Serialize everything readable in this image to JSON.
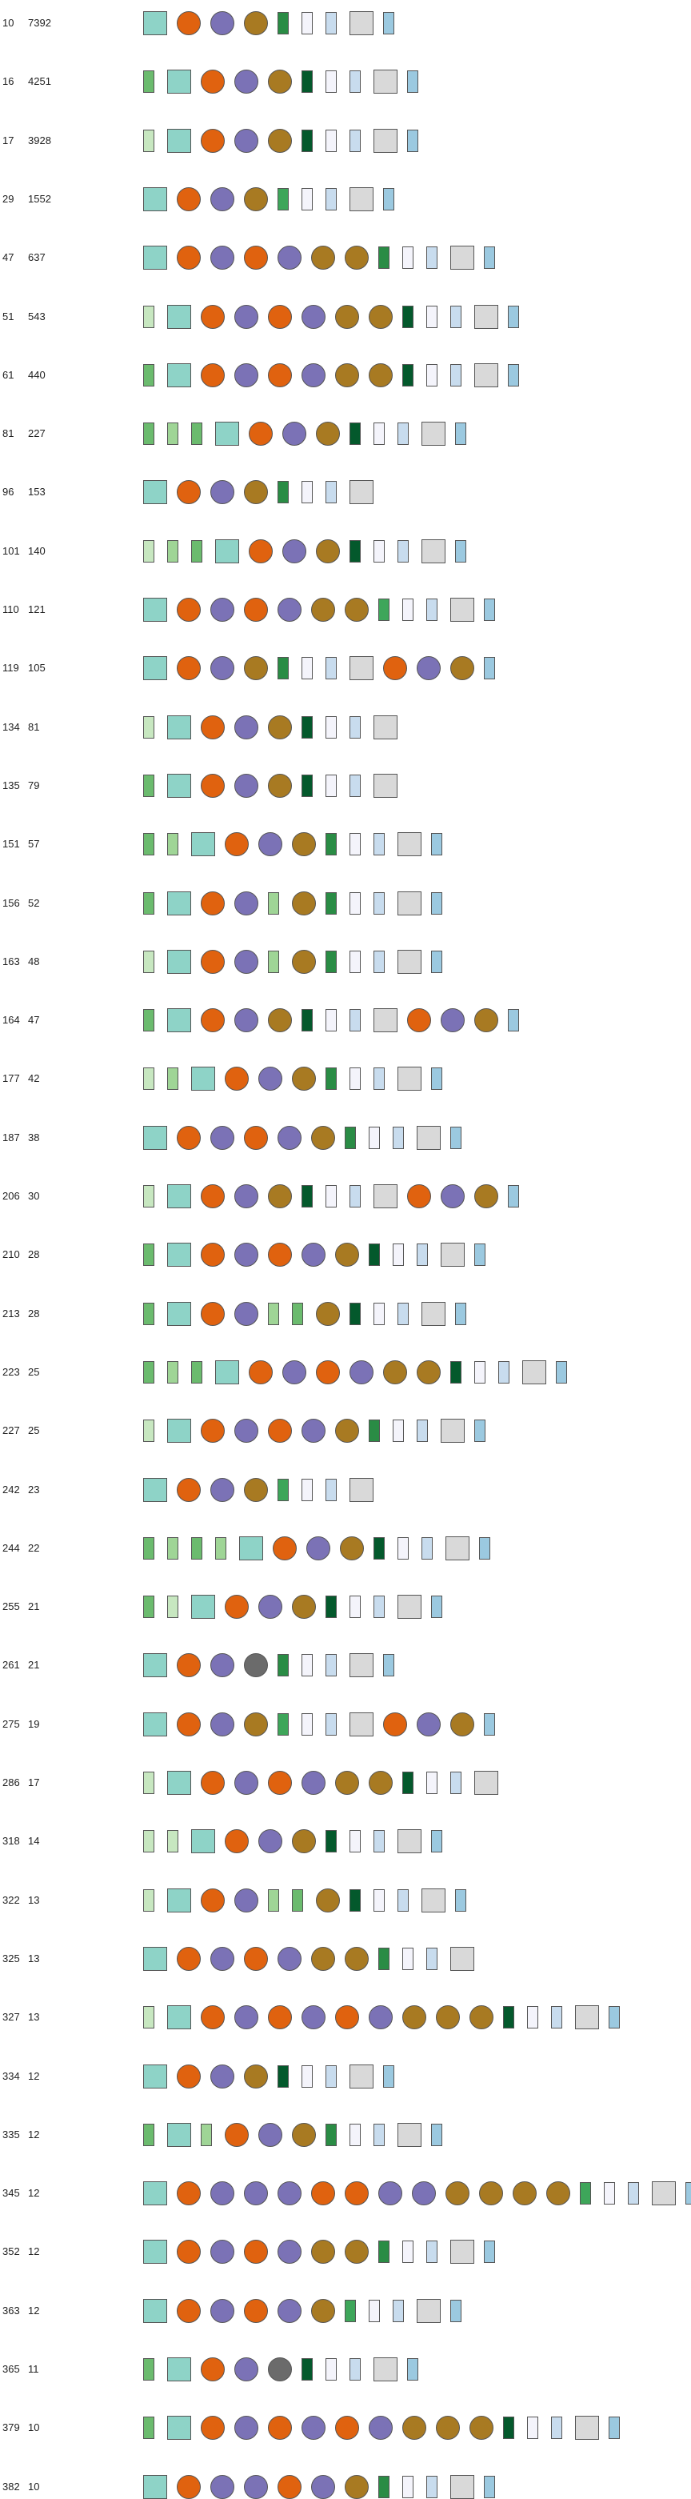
{
  "legend_palette": {
    "sq-teal": "#8ed3c7",
    "sq-grey": "#d9d9d9",
    "ci-orange": "#e0620f",
    "ci-purple": "#7b72b6",
    "ci-gold": "#a87a22",
    "ci-grey": "#6b6b6b",
    "ba-pale": "#c7e7c0",
    "ba-light": "#9fd596",
    "ba-mid": "#6bbb6e",
    "ba-green": "#3ea65a",
    "ba-dark": "#2a8c45",
    "ba-deep": "#04592c",
    "ba-white": "#f4f4fb",
    "ba-ice": "#c8dcee",
    "ba-blue": "#9bc9e0"
  },
  "rows": [
    {
      "id": "10",
      "count": "7392",
      "symbols": [
        "sq-teal",
        "ci-orange",
        "ci-purple",
        "ci-gold",
        "ba-dark",
        "ba-white",
        "ba-ice",
        "sq-grey",
        "ba-blue"
      ]
    },
    {
      "id": "16",
      "count": "4251",
      "symbols": [
        "ba-mid",
        "sq-teal",
        "ci-orange",
        "ci-purple",
        "ci-gold",
        "ba-deep",
        "ba-white",
        "ba-ice",
        "sq-grey",
        "ba-blue"
      ]
    },
    {
      "id": "17",
      "count": "3928",
      "symbols": [
        "ba-pale",
        "sq-teal",
        "ci-orange",
        "ci-purple",
        "ci-gold",
        "ba-deep",
        "ba-white",
        "ba-ice",
        "sq-grey",
        "ba-blue"
      ]
    },
    {
      "id": "29",
      "count": "1552",
      "symbols": [
        "sq-teal",
        "ci-orange",
        "ci-purple",
        "ci-gold",
        "ba-green",
        "ba-white",
        "ba-ice",
        "sq-grey",
        "ba-blue"
      ]
    },
    {
      "id": "47",
      "count": "637",
      "symbols": [
        "sq-teal",
        "ci-orange",
        "ci-purple",
        "ci-orange",
        "ci-purple",
        "ci-gold",
        "ci-gold",
        "ba-dark",
        "ba-white",
        "ba-ice",
        "sq-grey",
        "ba-blue"
      ]
    },
    {
      "id": "51",
      "count": "543",
      "symbols": [
        "ba-pale",
        "sq-teal",
        "ci-orange",
        "ci-purple",
        "ci-orange",
        "ci-purple",
        "ci-gold",
        "ci-gold",
        "ba-deep",
        "ba-white",
        "ba-ice",
        "sq-grey",
        "ba-blue"
      ]
    },
    {
      "id": "61",
      "count": "440",
      "symbols": [
        "ba-mid",
        "sq-teal",
        "ci-orange",
        "ci-purple",
        "ci-orange",
        "ci-purple",
        "ci-gold",
        "ci-gold",
        "ba-deep",
        "ba-white",
        "ba-ice",
        "sq-grey",
        "ba-blue"
      ]
    },
    {
      "id": "81",
      "count": "227",
      "symbols": [
        "ba-mid",
        "ba-light",
        "ba-mid",
        "sq-teal",
        "ci-orange",
        "ci-purple",
        "ci-gold",
        "ba-deep",
        "ba-white",
        "ba-ice",
        "sq-grey",
        "ba-blue"
      ]
    },
    {
      "id": "96",
      "count": "153",
      "symbols": [
        "sq-teal",
        "ci-orange",
        "ci-purple",
        "ci-gold",
        "ba-dark",
        "ba-white",
        "ba-ice",
        "sq-grey"
      ]
    },
    {
      "id": "101",
      "count": "140",
      "symbols": [
        "ba-pale",
        "ba-light",
        "ba-mid",
        "sq-teal",
        "ci-orange",
        "ci-purple",
        "ci-gold",
        "ba-deep",
        "ba-white",
        "ba-ice",
        "sq-grey",
        "ba-blue"
      ]
    },
    {
      "id": "110",
      "count": "121",
      "symbols": [
        "sq-teal",
        "ci-orange",
        "ci-purple",
        "ci-orange",
        "ci-purple",
        "ci-gold",
        "ci-gold",
        "ba-green",
        "ba-white",
        "ba-ice",
        "sq-grey",
        "ba-blue"
      ]
    },
    {
      "id": "119",
      "count": "105",
      "symbols": [
        "sq-teal",
        "ci-orange",
        "ci-purple",
        "ci-gold",
        "ba-dark",
        "ba-white",
        "ba-ice",
        "sq-grey",
        "ci-orange",
        "ci-purple",
        "ci-gold",
        "ba-blue"
      ]
    },
    {
      "id": "134",
      "count": "81",
      "symbols": [
        "ba-pale",
        "sq-teal",
        "ci-orange",
        "ci-purple",
        "ci-gold",
        "ba-deep",
        "ba-white",
        "ba-ice",
        "sq-grey"
      ]
    },
    {
      "id": "135",
      "count": "79",
      "symbols": [
        "ba-mid",
        "sq-teal",
        "ci-orange",
        "ci-purple",
        "ci-gold",
        "ba-deep",
        "ba-white",
        "ba-ice",
        "sq-grey"
      ]
    },
    {
      "id": "151",
      "count": "57",
      "symbols": [
        "ba-mid",
        "ba-light",
        "sq-teal",
        "ci-orange",
        "ci-purple",
        "ci-gold",
        "ba-dark",
        "ba-white",
        "ba-ice",
        "sq-grey",
        "ba-blue"
      ]
    },
    {
      "id": "156",
      "count": "52",
      "symbols": [
        "ba-mid",
        "sq-teal",
        "ci-orange",
        "ci-purple",
        "ba-light",
        "ci-gold",
        "ba-dark",
        "ba-white",
        "ba-ice",
        "sq-grey",
        "ba-blue"
      ]
    },
    {
      "id": "163",
      "count": "48",
      "symbols": [
        "ba-pale",
        "sq-teal",
        "ci-orange",
        "ci-purple",
        "ba-light",
        "ci-gold",
        "ba-dark",
        "ba-white",
        "ba-ice",
        "sq-grey",
        "ba-blue"
      ]
    },
    {
      "id": "164",
      "count": "47",
      "symbols": [
        "ba-mid",
        "sq-teal",
        "ci-orange",
        "ci-purple",
        "ci-gold",
        "ba-deep",
        "ba-white",
        "ba-ice",
        "sq-grey",
        "ci-orange",
        "ci-purple",
        "ci-gold",
        "ba-blue"
      ]
    },
    {
      "id": "177",
      "count": "42",
      "symbols": [
        "ba-pale",
        "ba-light",
        "sq-teal",
        "ci-orange",
        "ci-purple",
        "ci-gold",
        "ba-dark",
        "ba-white",
        "ba-ice",
        "sq-grey",
        "ba-blue"
      ]
    },
    {
      "id": "187",
      "count": "38",
      "symbols": [
        "sq-teal",
        "ci-orange",
        "ci-purple",
        "ci-orange",
        "ci-purple",
        "ci-gold",
        "ba-dark",
        "ba-white",
        "ba-ice",
        "sq-grey",
        "ba-blue"
      ]
    },
    {
      "id": "206",
      "count": "30",
      "symbols": [
        "ba-pale",
        "sq-teal",
        "ci-orange",
        "ci-purple",
        "ci-gold",
        "ba-deep",
        "ba-white",
        "ba-ice",
        "sq-grey",
        "ci-orange",
        "ci-purple",
        "ci-gold",
        "ba-blue"
      ]
    },
    {
      "id": "210",
      "count": "28",
      "symbols": [
        "ba-mid",
        "sq-teal",
        "ci-orange",
        "ci-purple",
        "ci-orange",
        "ci-purple",
        "ci-gold",
        "ba-deep",
        "ba-white",
        "ba-ice",
        "sq-grey",
        "ba-blue"
      ]
    },
    {
      "id": "213",
      "count": "28",
      "symbols": [
        "ba-mid",
        "sq-teal",
        "ci-orange",
        "ci-purple",
        "ba-light",
        "ba-mid",
        "ci-gold",
        "ba-deep",
        "ba-white",
        "ba-ice",
        "sq-grey",
        "ba-blue"
      ]
    },
    {
      "id": "223",
      "count": "25",
      "symbols": [
        "ba-mid",
        "ba-light",
        "ba-mid",
        "sq-teal",
        "ci-orange",
        "ci-purple",
        "ci-orange",
        "ci-purple",
        "ci-gold",
        "ci-gold",
        "ba-deep",
        "ba-white",
        "ba-ice",
        "sq-grey",
        "ba-blue"
      ]
    },
    {
      "id": "227",
      "count": "25",
      "symbols": [
        "ba-pale",
        "sq-teal",
        "ci-orange",
        "ci-purple",
        "ci-orange",
        "ci-purple",
        "ci-gold",
        "ba-dark",
        "ba-white",
        "ba-ice",
        "sq-grey",
        "ba-blue"
      ]
    },
    {
      "id": "242",
      "count": "23",
      "symbols": [
        "sq-teal",
        "ci-orange",
        "ci-purple",
        "ci-gold",
        "ba-green",
        "ba-white",
        "ba-ice",
        "sq-grey"
      ]
    },
    {
      "id": "244",
      "count": "22",
      "symbols": [
        "ba-mid",
        "ba-light",
        "ba-mid",
        "ba-light",
        "sq-teal",
        "ci-orange",
        "ci-purple",
        "ci-gold",
        "ba-deep",
        "ba-white",
        "ba-ice",
        "sq-grey",
        "ba-blue"
      ]
    },
    {
      "id": "255",
      "count": "21",
      "symbols": [
        "ba-mid",
        "ba-pale",
        "sq-teal",
        "ci-orange",
        "ci-purple",
        "ci-gold",
        "ba-deep",
        "ba-white",
        "ba-ice",
        "sq-grey",
        "ba-blue"
      ]
    },
    {
      "id": "261",
      "count": "21",
      "symbols": [
        "sq-teal",
        "ci-orange",
        "ci-purple",
        "ci-grey",
        "ba-dark",
        "ba-white",
        "ba-ice",
        "sq-grey",
        "ba-blue"
      ]
    },
    {
      "id": "275",
      "count": "19",
      "symbols": [
        "sq-teal",
        "ci-orange",
        "ci-purple",
        "ci-gold",
        "ba-green",
        "ba-white",
        "ba-ice",
        "sq-grey",
        "ci-orange",
        "ci-purple",
        "ci-gold",
        "ba-blue"
      ]
    },
    {
      "id": "286",
      "count": "17",
      "symbols": [
        "ba-pale",
        "sq-teal",
        "ci-orange",
        "ci-purple",
        "ci-orange",
        "ci-purple",
        "ci-gold",
        "ci-gold",
        "ba-deep",
        "ba-white",
        "ba-ice",
        "sq-grey"
      ]
    },
    {
      "id": "318",
      "count": "14",
      "symbols": [
        "ba-pale",
        "ba-pale",
        "sq-teal",
        "ci-orange",
        "ci-purple",
        "ci-gold",
        "ba-deep",
        "ba-white",
        "ba-ice",
        "sq-grey",
        "ba-blue"
      ]
    },
    {
      "id": "322",
      "count": "13",
      "symbols": [
        "ba-pale",
        "sq-teal",
        "ci-orange",
        "ci-purple",
        "ba-light",
        "ba-mid",
        "ci-gold",
        "ba-deep",
        "ba-white",
        "ba-ice",
        "sq-grey",
        "ba-blue"
      ]
    },
    {
      "id": "325",
      "count": "13",
      "symbols": [
        "sq-teal",
        "ci-orange",
        "ci-purple",
        "ci-orange",
        "ci-purple",
        "ci-gold",
        "ci-gold",
        "ba-dark",
        "ba-white",
        "ba-ice",
        "sq-grey"
      ]
    },
    {
      "id": "327",
      "count": "13",
      "symbols": [
        "ba-pale",
        "sq-teal",
        "ci-orange",
        "ci-purple",
        "ci-orange",
        "ci-purple",
        "ci-orange",
        "ci-purple",
        "ci-gold",
        "ci-gold",
        "ci-gold",
        "ba-deep",
        "ba-white",
        "ba-ice",
        "sq-grey",
        "ba-blue"
      ]
    },
    {
      "id": "334",
      "count": "12",
      "symbols": [
        "sq-teal",
        "ci-orange",
        "ci-purple",
        "ci-gold",
        "ba-deep",
        "ba-white",
        "ba-ice",
        "sq-grey",
        "ba-blue"
      ]
    },
    {
      "id": "335",
      "count": "12",
      "symbols": [
        "ba-mid",
        "sq-teal",
        "ba-light",
        "ci-orange",
        "ci-purple",
        "ci-gold",
        "ba-dark",
        "ba-white",
        "ba-ice",
        "sq-grey",
        "ba-blue"
      ]
    },
    {
      "id": "345",
      "count": "12",
      "symbols": [
        "sq-teal",
        "ci-orange",
        "ci-purple",
        "ci-purple",
        "ci-purple",
        "ci-orange",
        "ci-orange",
        "ci-purple",
        "ci-purple",
        "ci-gold",
        "ci-gold",
        "ci-gold",
        "ci-gold",
        "ba-green",
        "ba-white",
        "ba-ice",
        "sq-grey",
        "ba-blue"
      ]
    },
    {
      "id": "352",
      "count": "12",
      "symbols": [
        "sq-teal",
        "ci-orange",
        "ci-purple",
        "ci-orange",
        "ci-purple",
        "ci-gold",
        "ci-gold",
        "ba-dark",
        "ba-white",
        "ba-ice",
        "sq-grey",
        "ba-blue"
      ]
    },
    {
      "id": "363",
      "count": "12",
      "symbols": [
        "sq-teal",
        "ci-orange",
        "ci-purple",
        "ci-orange",
        "ci-purple",
        "ci-gold",
        "ba-green",
        "ba-white",
        "ba-ice",
        "sq-grey",
        "ba-blue"
      ]
    },
    {
      "id": "365",
      "count": "11",
      "symbols": [
        "ba-mid",
        "sq-teal",
        "ci-orange",
        "ci-purple",
        "ci-grey",
        "ba-deep",
        "ba-white",
        "ba-ice",
        "sq-grey",
        "ba-blue"
      ]
    },
    {
      "id": "379",
      "count": "10",
      "symbols": [
        "ba-mid",
        "sq-teal",
        "ci-orange",
        "ci-purple",
        "ci-orange",
        "ci-purple",
        "ci-orange",
        "ci-purple",
        "ci-gold",
        "ci-gold",
        "ci-gold",
        "ba-deep",
        "ba-white",
        "ba-ice",
        "sq-grey",
        "ba-blue"
      ]
    },
    {
      "id": "382",
      "count": "10",
      "symbols": [
        "sq-teal",
        "ci-orange",
        "ci-purple",
        "ci-purple",
        "ci-orange",
        "ci-purple",
        "ci-gold",
        "ba-dark",
        "ba-white",
        "ba-ice",
        "sq-grey",
        "ba-blue"
      ]
    }
  ]
}
